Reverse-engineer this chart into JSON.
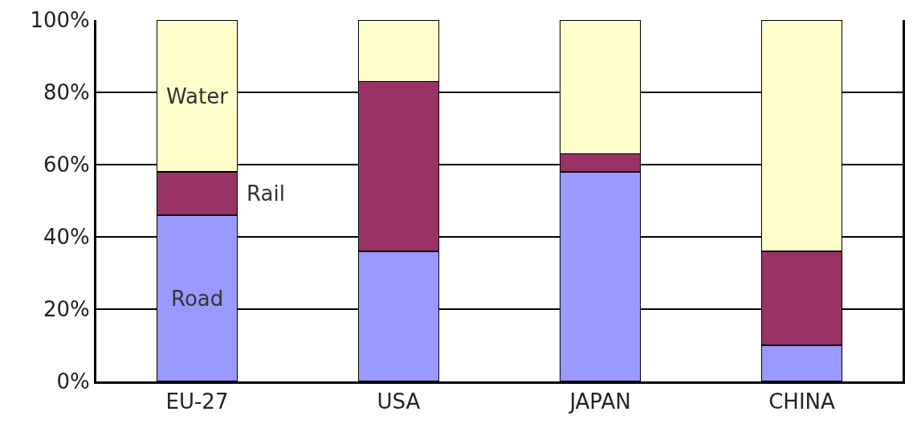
{
  "chart_data": {
    "type": "bar",
    "stacked": true,
    "categories": [
      "EU-27",
      "USA",
      "JAPAN",
      "CHINA"
    ],
    "series": [
      {
        "name": "Road",
        "color": "#9999ff",
        "values": [
          46,
          36,
          58,
          10
        ]
      },
      {
        "name": "Rail",
        "color": "#993366",
        "values": [
          12,
          47,
          5,
          26
        ]
      },
      {
        "name": "Water",
        "color": "#ffffcc",
        "values": [
          42,
          17,
          37,
          64
        ]
      }
    ],
    "ylim": [
      0,
      100
    ],
    "yticks": [
      {
        "value": 0,
        "label": "0%"
      },
      {
        "value": 20,
        "label": "20%"
      },
      {
        "value": 40,
        "label": "40%"
      },
      {
        "value": 60,
        "label": "60%"
      },
      {
        "value": 80,
        "label": "80%"
      },
      {
        "value": 100,
        "label": "100%"
      }
    ],
    "grid": "y",
    "legend": false
  }
}
